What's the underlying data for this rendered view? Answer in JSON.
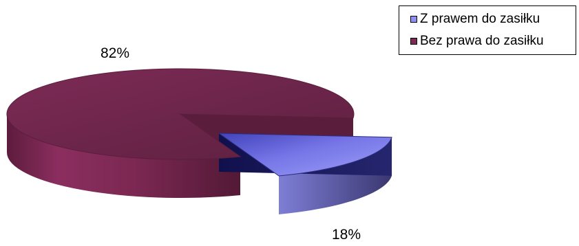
{
  "chart_data": {
    "type": "pie",
    "title": "",
    "slices": [
      {
        "label": "Z prawem do zasiłku",
        "value": 18,
        "display": "18%",
        "color": "#8f8ff3"
      },
      {
        "label": "Bez prawa do zasiłku",
        "value": 82,
        "display": "82%",
        "color": "#7c2a55"
      }
    ],
    "legend": "top-right",
    "style": "3d-exploded"
  }
}
